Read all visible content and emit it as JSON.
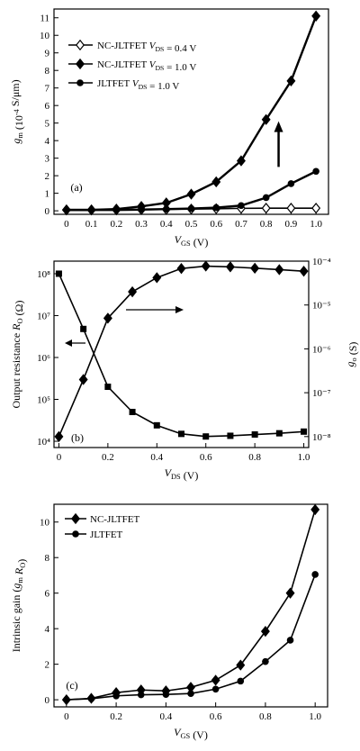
{
  "chart_data": [
    {
      "type": "line",
      "panel_label": "(a)",
      "xlabel": "V_GS (V)",
      "ylabel": "g_m (10^-4 S/μm)",
      "xlim": [
        -0.05,
        1.05
      ],
      "ylim": [
        -0.2,
        11.5
      ],
      "xticks": [
        0,
        0.1,
        0.2,
        0.3,
        0.4,
        0.5,
        0.6,
        0.7,
        0.8,
        0.9,
        1.0
      ],
      "xtick_labels": [
        "0",
        "0.1",
        "0.2",
        "0.3",
        "0.4",
        "0.5",
        "0.6",
        "0.7",
        "0.8",
        "0.9",
        "1.0"
      ],
      "yticks": [
        0,
        1,
        2,
        3,
        4,
        5,
        6,
        7,
        8,
        9,
        10,
        11
      ],
      "legend_position": "top-left",
      "series": [
        {
          "name": "NC-JLTFET V_DS = 0.4 V",
          "marker": "diamond-open",
          "x": [
            0,
            0.1,
            0.2,
            0.3,
            0.4,
            0.5,
            0.6,
            0.7,
            0.8,
            0.9,
            1.0
          ],
          "y": [
            0.05,
            0.05,
            0.05,
            0.07,
            0.08,
            0.1,
            0.12,
            0.14,
            0.15,
            0.15,
            0.15
          ]
        },
        {
          "name": "NC-JLTFET V_DS = 1.0 V",
          "marker": "diamond-filled",
          "x": [
            0,
            0.1,
            0.2,
            0.3,
            0.4,
            0.5,
            0.6,
            0.7,
            0.8,
            0.9,
            1.0
          ],
          "y": [
            0.05,
            0.05,
            0.1,
            0.25,
            0.45,
            0.95,
            1.65,
            2.85,
            5.2,
            7.4,
            11.1
          ]
        },
        {
          "name": "JLTFET V_DS = 1.0 V",
          "marker": "circle-filled",
          "x": [
            0,
            0.1,
            0.2,
            0.3,
            0.4,
            0.5,
            0.6,
            0.7,
            0.8,
            0.9,
            1.0
          ],
          "y": [
            0.05,
            0.05,
            0.05,
            0.07,
            0.1,
            0.13,
            0.18,
            0.3,
            0.75,
            1.55,
            2.25
          ]
        }
      ],
      "arrow": {
        "x": 0.85,
        "y_from": 2.5,
        "y_to": 5.0
      }
    },
    {
      "type": "line",
      "panel_label": "(b)",
      "xlabel": "V_DS (V)",
      "ylabel": "Output resistance R_O (Ω)",
      "ylabel_right": "g_o (S)",
      "xlim": [
        -0.02,
        1.02
      ],
      "ylog": true,
      "y_exp_range": [
        3.85,
        8.3
      ],
      "yticks_exp": [
        4,
        5,
        6,
        7,
        8
      ],
      "ytick_labels": [
        "10⁴",
        "10⁵",
        "10⁶",
        "10⁷",
        "10⁸"
      ],
      "y2_exp_range": [
        -8.25,
        -4.0
      ],
      "y2ticks_exp": [
        -8,
        -7,
        -6,
        -5,
        -4
      ],
      "y2tick_labels": [
        "10⁻⁸",
        "10⁻⁷",
        "10⁻⁶",
        "10⁻⁵",
        "10⁻⁴"
      ],
      "xticks": [
        0,
        0.2,
        0.4,
        0.6,
        0.8,
        1.0
      ],
      "xtick_labels": [
        "0",
        "0.2",
        "0.4",
        "0.6",
        "0.8",
        "1.0"
      ],
      "series": [
        {
          "name": "R_O",
          "axis": "left",
          "marker": "square-filled",
          "x": [
            0,
            0.1,
            0.2,
            0.3,
            0.4,
            0.5,
            0.6,
            0.7,
            0.8,
            0.9,
            1.0
          ],
          "y": [
            100000000.0,
            4800000.0,
            200000.0,
            50000.0,
            24000.0,
            15000.0,
            13000.0,
            13500.0,
            14500.0,
            15500.0,
            17000.0
          ]
        },
        {
          "name": "g_o",
          "axis": "right",
          "marker": "diamond-filled",
          "x": [
            0,
            0.1,
            0.2,
            0.3,
            0.4,
            0.5,
            0.6,
            0.7,
            0.8,
            0.9,
            1.0
          ],
          "y": [
            1e-08,
            2e-07,
            5e-06,
            2e-05,
            4.2e-05,
            6.8e-05,
            7.7e-05,
            7.4e-05,
            6.9e-05,
            6.4e-05,
            5.9e-05
          ]
        }
      ]
    },
    {
      "type": "line",
      "panel_label": "(c)",
      "xlabel": "V_GS (V)",
      "ylabel": "Intrinsic gain (g_m R_O)",
      "xlim": [
        -0.05,
        1.05
      ],
      "ylim": [
        -0.4,
        11
      ],
      "xticks": [
        0,
        0.2,
        0.4,
        0.6,
        0.8,
        1.0
      ],
      "xtick_labels": [
        "0",
        "0.2",
        "0.4",
        "0.6",
        "0.8",
        "1.0"
      ],
      "yticks": [
        0,
        2,
        4,
        6,
        8,
        10
      ],
      "legend_position": "top-left",
      "series": [
        {
          "name": "NC-JLTFET",
          "marker": "diamond-filled",
          "x": [
            0,
            0.1,
            0.2,
            0.3,
            0.4,
            0.5,
            0.6,
            0.7,
            0.8,
            0.9,
            1.0
          ],
          "y": [
            0.0,
            0.08,
            0.4,
            0.55,
            0.5,
            0.7,
            1.1,
            1.95,
            3.85,
            6.0,
            10.7
          ]
        },
        {
          "name": "JLTFET",
          "marker": "circle-filled",
          "x": [
            0,
            0.1,
            0.2,
            0.3,
            0.4,
            0.5,
            0.6,
            0.7,
            0.8,
            0.9,
            1.0
          ],
          "y": [
            0.0,
            0.06,
            0.22,
            0.28,
            0.3,
            0.35,
            0.6,
            1.05,
            2.15,
            3.35,
            7.05
          ]
        }
      ]
    }
  ]
}
